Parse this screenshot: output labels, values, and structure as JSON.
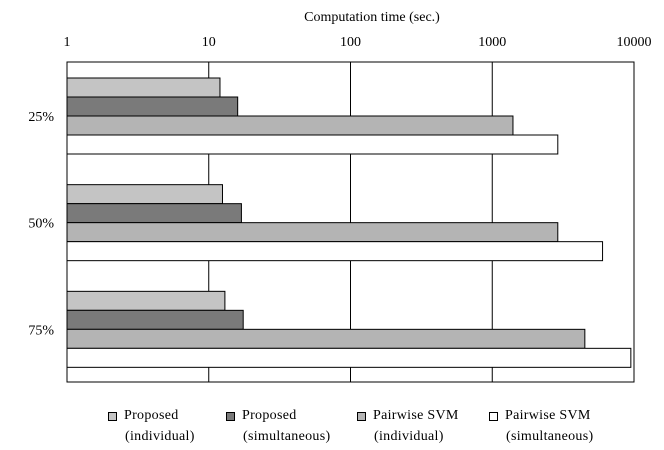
{
  "chart_data": {
    "type": "bar",
    "orientation": "horizontal",
    "title": "Computation time  (sec.)",
    "xlabel": "",
    "ylabel": "",
    "x_scale": "log",
    "xlim": [
      1,
      10000
    ],
    "x_ticks": [
      "1",
      "10",
      "100",
      "1000",
      "10000"
    ],
    "categories": [
      "25%",
      "50%",
      "75%"
    ],
    "grid": "vertical",
    "legend_position": "bottom",
    "series": [
      {
        "name": "Proposed (individual)",
        "label_line1": "Proposed",
        "label_line2": "(individual)",
        "color": "#c4c4c4",
        "values": [
          12,
          12.5,
          13
        ]
      },
      {
        "name": "Proposed (simultaneous)",
        "label_line1": "Proposed",
        "label_line2": "(simultaneous)",
        "color": "#7a7a7a",
        "values": [
          16,
          17,
          17.5
        ]
      },
      {
        "name": "Pairwise SVM (individual)",
        "label_line1": "Pairwise SVM",
        "label_line2": "(individual)",
        "color": "#b4b4b4",
        "values": [
          1400,
          2900,
          4500
        ]
      },
      {
        "name": "Pairwise SVM (simultaneous)",
        "label_line1": "Pairwise SVM",
        "label_line2": "(simultaneous)",
        "color": "#ffffff",
        "values": [
          2900,
          6000,
          9500
        ]
      }
    ]
  }
}
